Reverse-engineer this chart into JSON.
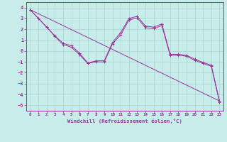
{
  "xlabel": "Windchill (Refroidissement éolien,°C)",
  "bg_color": "#c8ecea",
  "grid_color": "#a8d4d0",
  "line_color": "#993399",
  "xlim": [
    -0.5,
    23.5
  ],
  "ylim": [
    -5.5,
    4.5
  ],
  "xticks": [
    0,
    1,
    2,
    3,
    4,
    5,
    6,
    7,
    8,
    9,
    10,
    11,
    12,
    13,
    14,
    15,
    16,
    17,
    18,
    19,
    20,
    21,
    22,
    23
  ],
  "yticks": [
    -5,
    -4,
    -3,
    -2,
    -1,
    0,
    1,
    2,
    3,
    4
  ],
  "line1_x": [
    0,
    1,
    2,
    3,
    4,
    5,
    6,
    7,
    8,
    9,
    10,
    11,
    12,
    13,
    14,
    15,
    16,
    17,
    18,
    19,
    20,
    21,
    22,
    23
  ],
  "line1_y": [
    3.8,
    3.0,
    2.2,
    1.4,
    0.7,
    0.5,
    -0.2,
    -1.1,
    -0.9,
    -0.9,
    0.8,
    1.7,
    3.0,
    3.2,
    2.3,
    2.2,
    2.5,
    -0.3,
    -0.3,
    -0.4,
    -0.75,
    -1.05,
    -1.3,
    -4.6
  ],
  "line2_x": [
    0,
    1,
    2,
    3,
    4,
    5,
    6,
    7,
    8,
    9,
    10,
    11,
    12,
    13,
    14,
    15,
    16,
    17,
    18,
    19,
    20,
    21,
    22,
    23
  ],
  "line2_y": [
    3.8,
    3.0,
    2.2,
    1.35,
    0.6,
    0.35,
    -0.35,
    -1.15,
    -1.0,
    -1.0,
    0.65,
    1.5,
    2.85,
    3.05,
    2.15,
    2.05,
    2.35,
    -0.4,
    -0.38,
    -0.48,
    -0.85,
    -1.15,
    -1.4,
    -4.7
  ],
  "line3_x": [
    0,
    23
  ],
  "line3_y": [
    3.8,
    -4.6
  ]
}
